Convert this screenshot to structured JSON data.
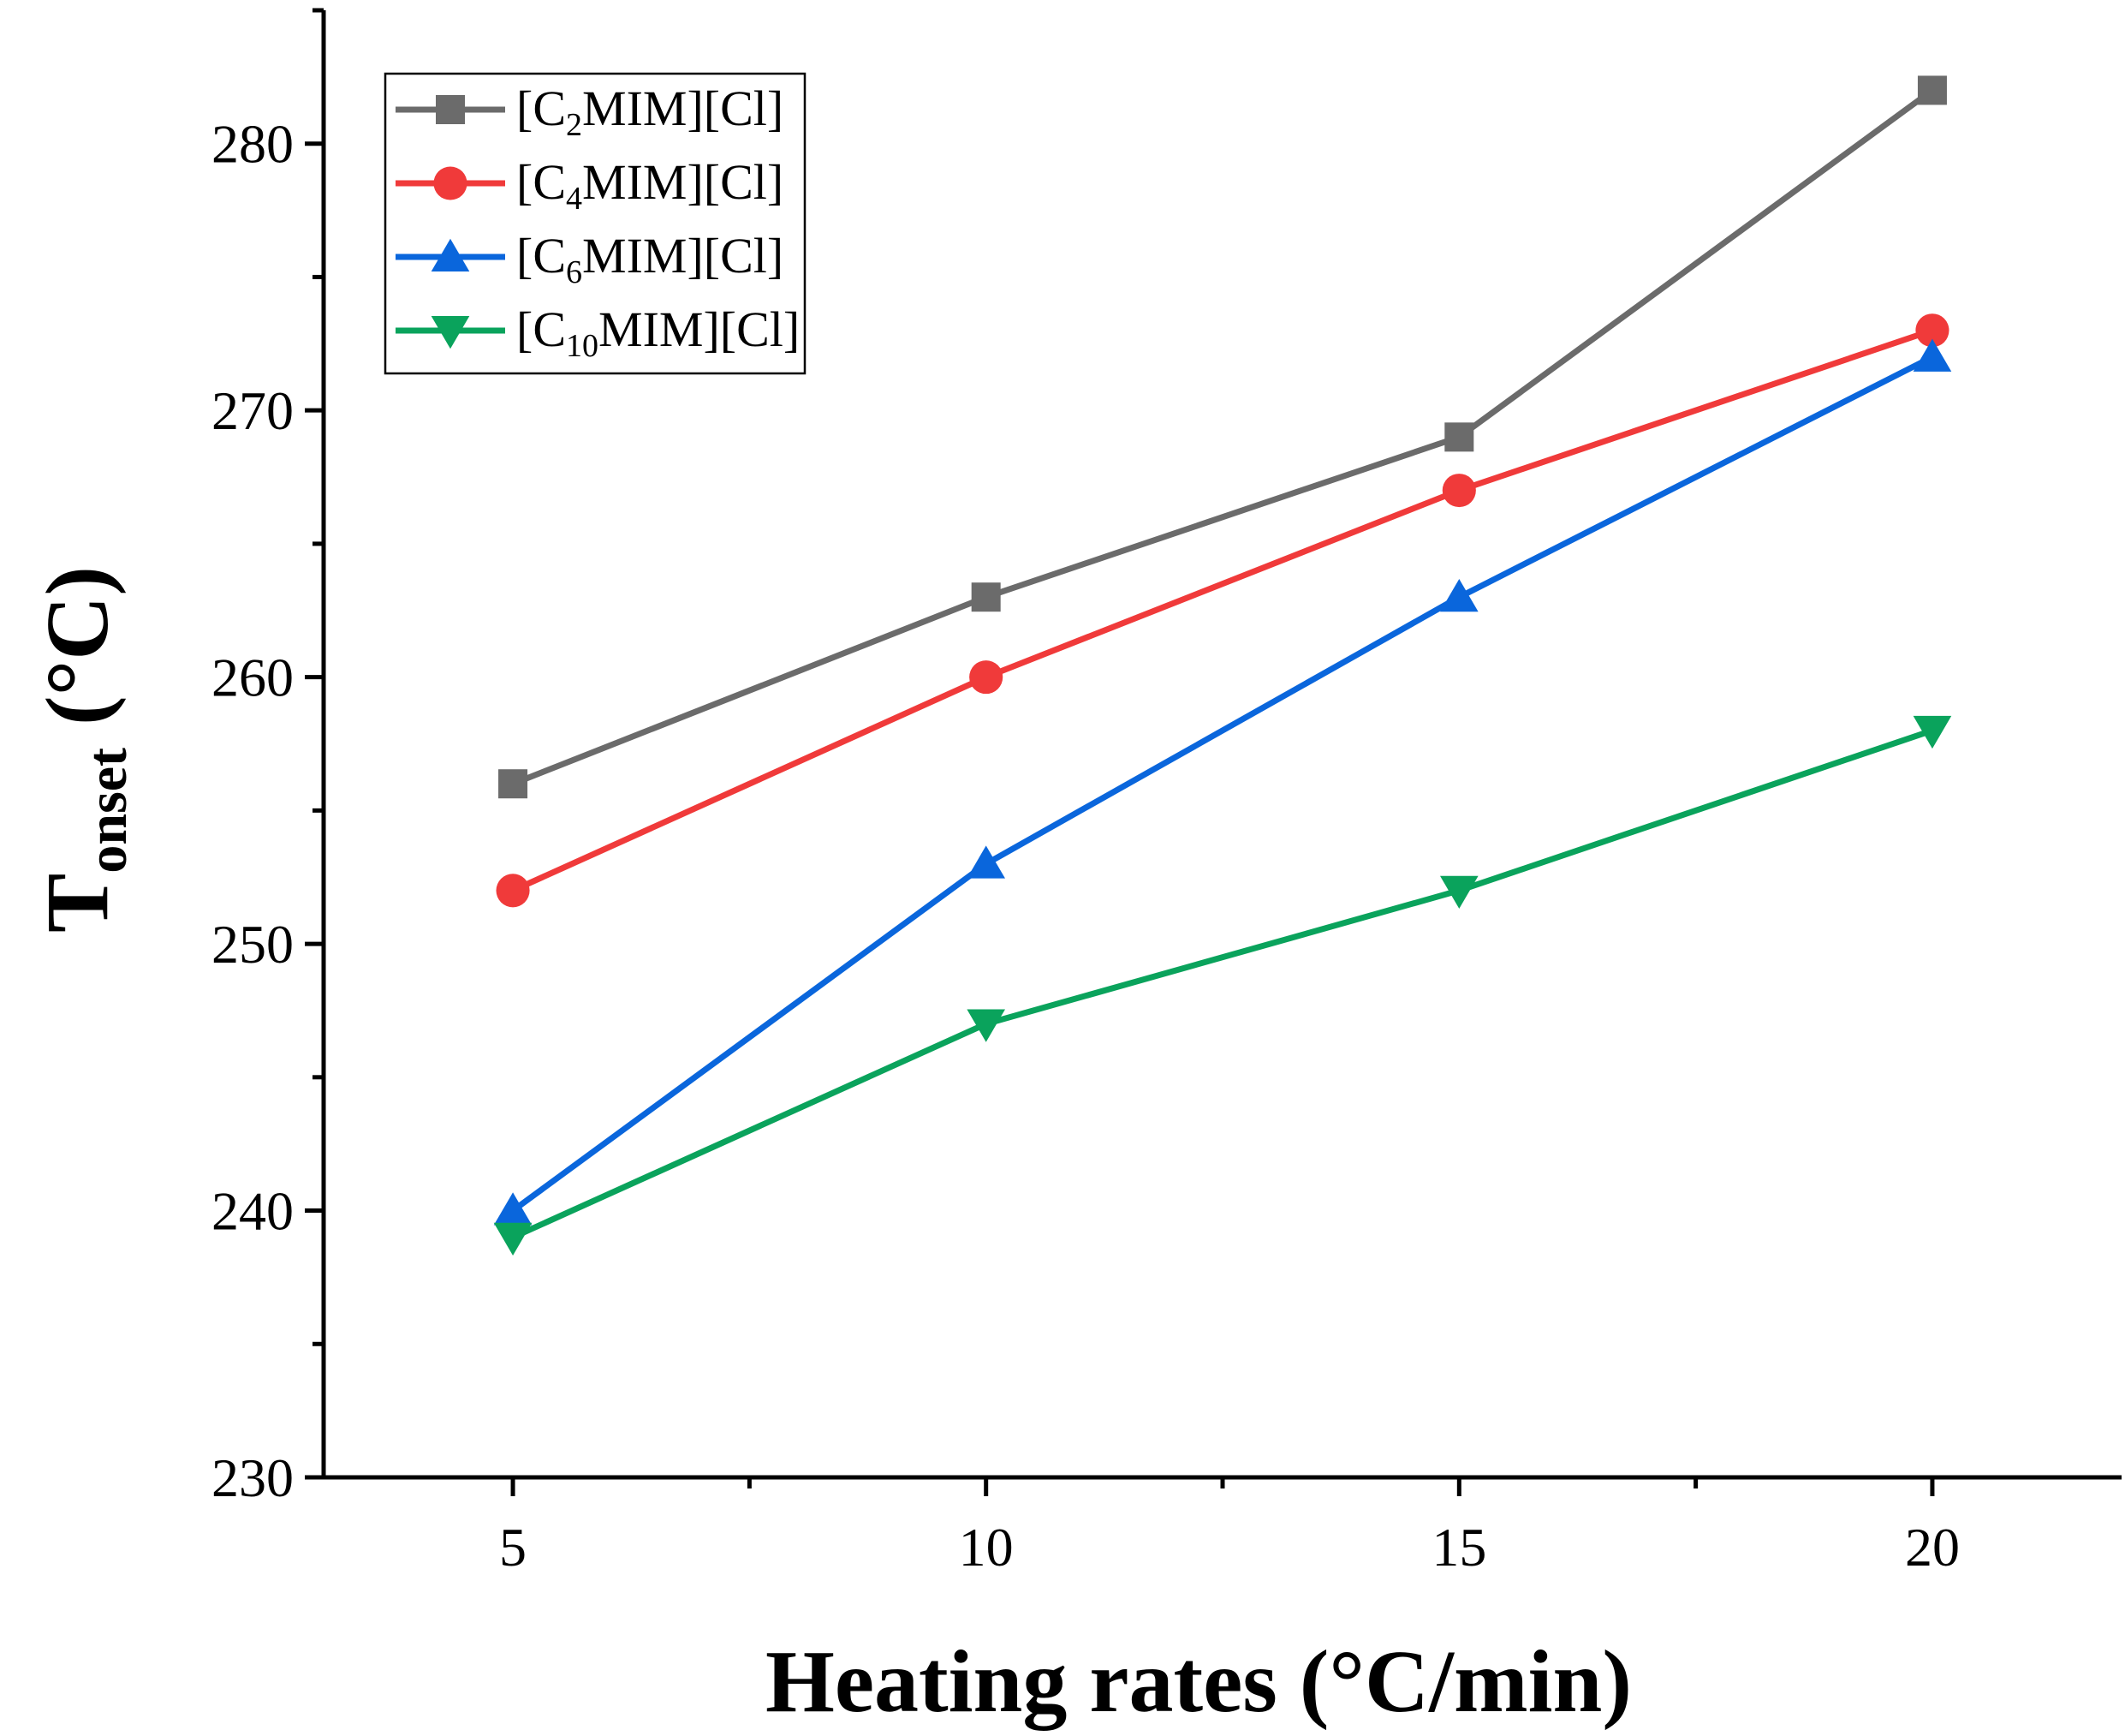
{
  "chart_data": {
    "type": "line",
    "x": [
      5,
      10,
      15,
      20
    ],
    "xlim": [
      3,
      22
    ],
    "ylim": [
      230,
      285
    ],
    "xticks": [
      5,
      10,
      15,
      20
    ],
    "yticks": [
      230,
      240,
      250,
      260,
      270,
      280
    ],
    "xlabel": "Heating rates (°C/min)",
    "ylabel": {
      "main": "T",
      "sub": "onset",
      "unit": " (°C)"
    },
    "legend_position": "top-left",
    "series": [
      {
        "name": "[C2MIM][Cl]",
        "label": {
          "pre": "[C",
          "sub": "2",
          "post": "MIM][Cl]"
        },
        "marker": "square",
        "color": "#6b6b6b",
        "values": [
          256,
          263,
          269,
          282
        ]
      },
      {
        "name": "[C4MIM][Cl]",
        "label": {
          "pre": "[C",
          "sub": "4",
          "post": "MIM][Cl]"
        },
        "marker": "circle",
        "color": "#f03a3a",
        "values": [
          252,
          260,
          267,
          273
        ]
      },
      {
        "name": "[C6MIM][Cl]",
        "label": {
          "pre": "[C",
          "sub": "6",
          "post": "MIM][Cl]"
        },
        "marker": "triangle-up",
        "color": "#0a66dc",
        "values": [
          240,
          253,
          263,
          272
        ]
      },
      {
        "name": "[C10MIM][Cl]",
        "label": {
          "pre": "[C",
          "sub": "10",
          "post": "MIM][Cl]"
        },
        "marker": "triangle-down",
        "color": "#0aa35c",
        "values": [
          239,
          247,
          252,
          258
        ]
      }
    ]
  }
}
